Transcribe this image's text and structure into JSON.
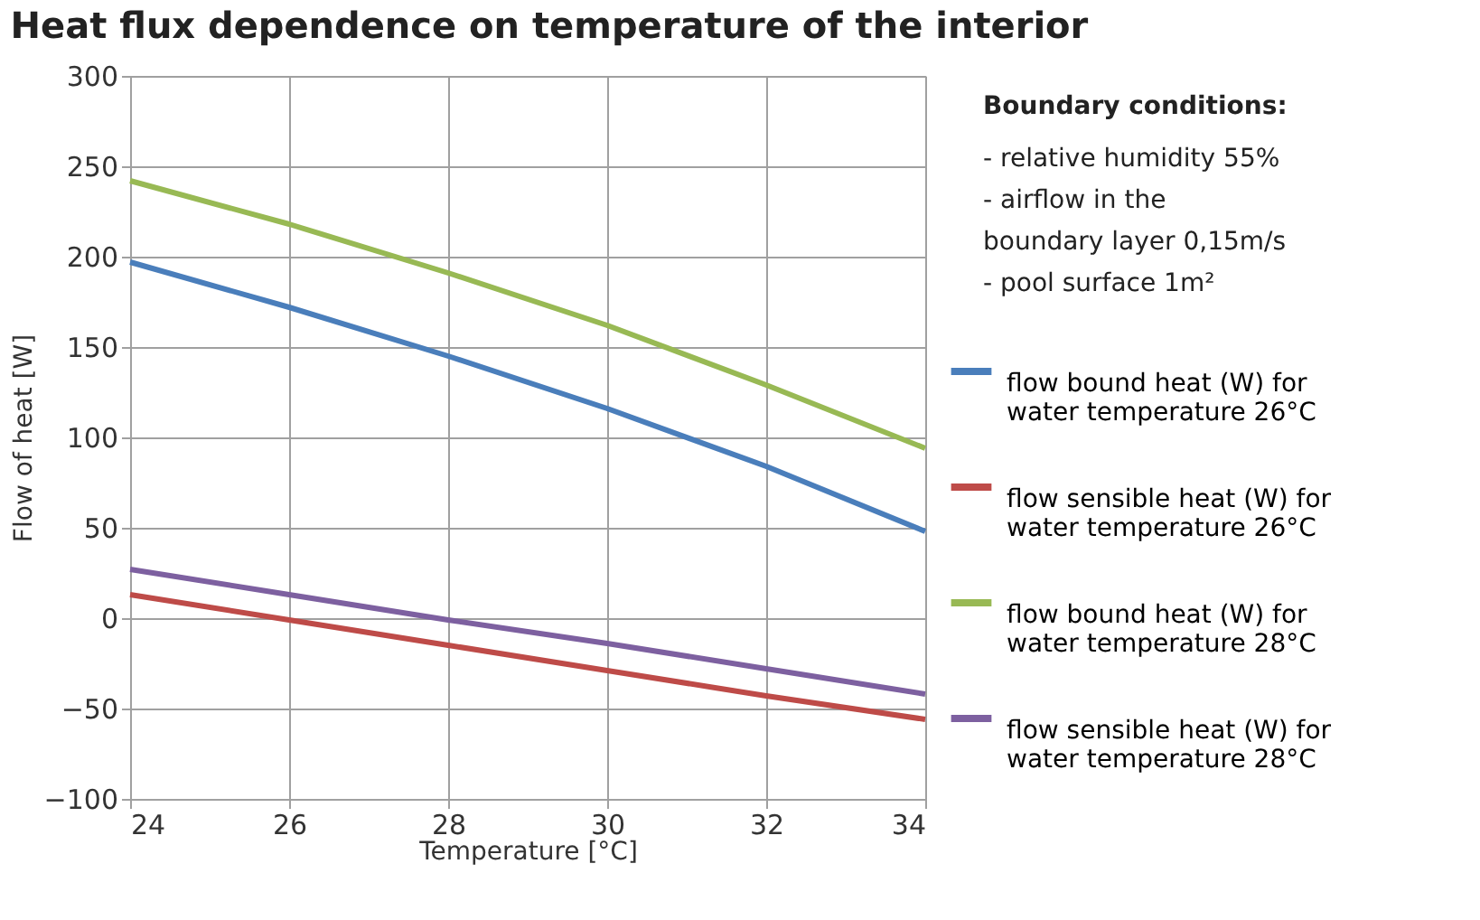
{
  "chart_data": {
    "type": "line",
    "title": "Heat flux dependence on temperature of the interior",
    "xlabel": "Temperature [°C]",
    "ylabel": "Flow of heat [W]",
    "x": [
      24,
      26,
      28,
      30,
      32,
      34
    ],
    "series": [
      {
        "name": "flow bound heat (W) for water temperature 26°C",
        "color": "#4a7ebb",
        "values": [
          197,
          172,
          145,
          116,
          84,
          48
        ]
      },
      {
        "name": "flow sensible heat (W) for water temperature 26°C",
        "color": "#be4b48",
        "values": [
          13,
          -1,
          -15,
          -29,
          -43,
          -56
        ]
      },
      {
        "name": "flow bound heat (W) for water temperature 28°C",
        "color": "#98b954",
        "values": [
          242,
          218,
          191,
          162,
          129,
          94
        ]
      },
      {
        "name": "flow sensible heat (W) for water temperature 28°C",
        "color": "#7d60a0",
        "values": [
          27,
          13,
          -1,
          -14,
          -28,
          -42
        ]
      }
    ],
    "xlim": [
      24,
      34
    ],
    "xticks": [
      24,
      26,
      28,
      30,
      32,
      34
    ],
    "ylim": [
      -100,
      300
    ],
    "yticks": [
      -100,
      -50,
      0,
      50,
      100,
      150,
      200,
      250,
      300
    ],
    "grid": true,
    "legend": "right",
    "marker": "none",
    "line_style": "solid",
    "annotations": [
      "Boundary conditions:",
      "- relative humidity 55%",
      "- airflow in the",
      "  boundary layer 0,15m/s",
      "- pool surface 1m²"
    ]
  }
}
